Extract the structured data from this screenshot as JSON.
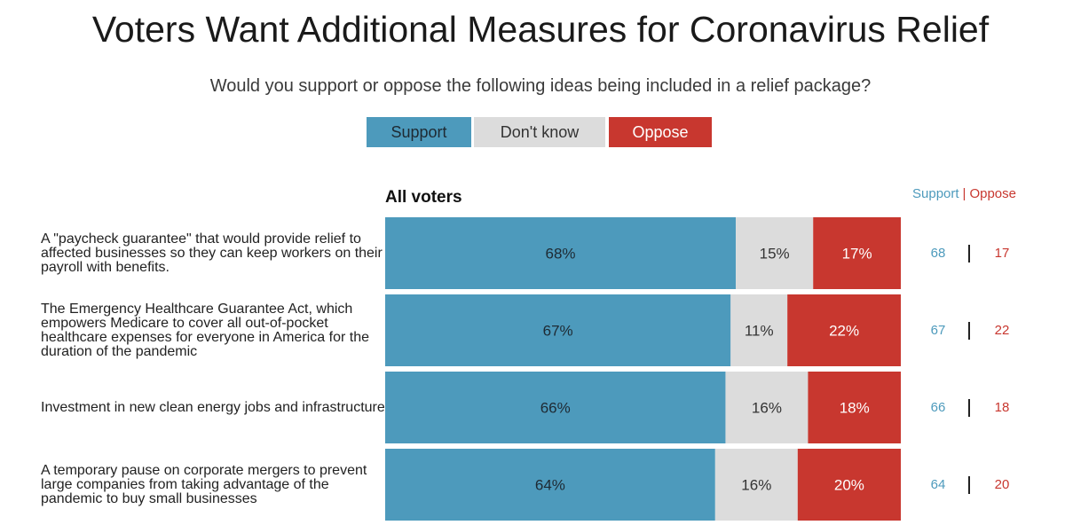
{
  "chart_data": {
    "type": "bar",
    "orientation": "horizontal-stacked",
    "title": "Voters Want Additional Measures for Coronavirus Relief",
    "subtitle": "Would you support or oppose the following ideas being included in a relief package?",
    "section_title": "All voters",
    "legend": [
      "Support",
      "Don't know",
      "Oppose"
    ],
    "legend_position": "top-center",
    "net_header": {
      "support": "Support",
      "separator": "|",
      "oppose": "Oppose"
    },
    "categories": [
      "A \"paycheck guarantee\" that would provide relief to affected businesses so they can keep workers on their payroll with benefits.",
      "The Emergency Healthcare Guarantee Act, which empowers Medicare to cover all out-of-pocket healthcare expenses for everyone in America for the duration of the pandemic",
      "Investment in new clean energy jobs and infrastructure",
      "A temporary pause on corporate mergers to prevent large companies from taking advantage of the pandemic to buy small businesses"
    ],
    "series": [
      {
        "name": "Support",
        "values": [
          68,
          67,
          66,
          64
        ],
        "labels": [
          "68%",
          "67%",
          "66%",
          "64%"
        ]
      },
      {
        "name": "Don't know",
        "values": [
          15,
          11,
          16,
          16
        ],
        "labels": [
          "15%",
          "11%",
          "16%",
          "16%"
        ]
      },
      {
        "name": "Oppose",
        "values": [
          17,
          22,
          18,
          20
        ],
        "labels": [
          "17%",
          "22%",
          "18%",
          "20%"
        ]
      }
    ],
    "net_support": [
      "68",
      "67",
      "66",
      "64"
    ],
    "net_oppose": [
      "17",
      "22",
      "18",
      "20"
    ],
    "xlim": [
      0,
      100
    ],
    "colors": {
      "support": "#4d9abc",
      "dont_know": "#dcdcdc",
      "oppose": "#c8372f"
    }
  }
}
